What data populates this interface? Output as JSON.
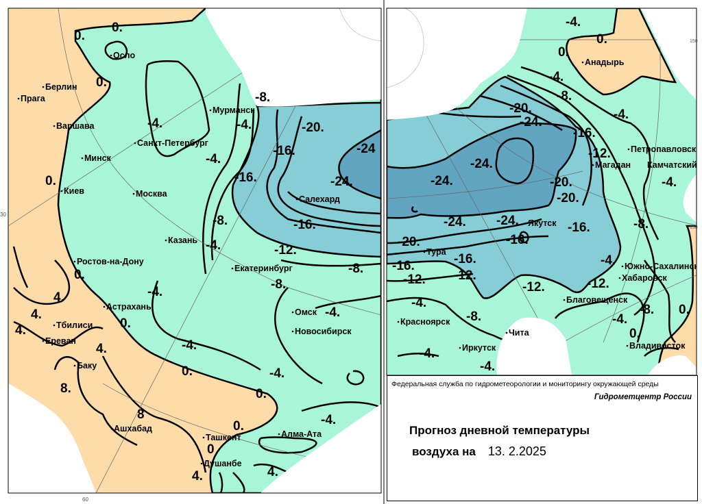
{
  "colors": {
    "above_zero": "#FDDCAA",
    "zero_to_minus12": "#A8F5D8",
    "minus12_to_minus24": "#86CDD6",
    "below_minus24": "#62A5C0",
    "no_data": "#FFFFFF",
    "isoline": "#000000"
  },
  "info": {
    "agency": "Федеральная служба по гидрометеорологии и мониторингу окружающей среды",
    "center": "Гидрометцентр России",
    "title_line1": "Прогноз дневной температуры",
    "title_line2": "воздуха на",
    "date": "13. 2.2025"
  },
  "grid_labels": [
    "30",
    "60",
    "150",
    "150"
  ],
  "left_map": {
    "cities": [
      "Осло",
      "Берлин",
      "Прага",
      "Варшава",
      "Минск",
      "Санкт-Петербург",
      "Мурманск",
      "Киев",
      "Москва",
      "Салехард",
      "Казань",
      "Ростов-на-Дону",
      "Екатеринбург",
      "Астрахань",
      "Омск",
      "Тбилиси",
      "Новосибирск",
      "Ереван",
      "Баку",
      "Ашхабад",
      "Ташкент",
      "Алма-Ата",
      "Душанбе"
    ],
    "isolines": [
      "0.",
      "0.",
      "0.",
      "0.",
      "0.",
      "0.",
      "0.",
      "0.",
      "0.",
      "0",
      "-4.",
      "-4.",
      "-4.",
      "-4.",
      "-4.",
      "-4.",
      "-4.",
      "-4.",
      "-4.",
      "-8.",
      "-8.",
      "-8.",
      "-8.",
      "-16.",
      "-16.",
      "-16.",
      "-20.",
      "-24",
      "-24.",
      "-12.",
      "4.",
      "4.",
      "4.",
      "4.",
      "4.",
      "4.",
      "8.",
      "8"
    ]
  },
  "right_map": {
    "cities": [
      "Анадырь",
      "Петропавловск",
      "Камчатский",
      "Магадан",
      "Якутск",
      "Тура",
      "Южно-Сахалинск",
      "Хабаровск",
      "Благовещенск",
      "Красноярск",
      "Чита",
      "Иркутск",
      "Владивосток"
    ],
    "isolines": [
      "-4.",
      "-4.",
      "-4.",
      "-4.",
      "-4.",
      "-4.",
      "-4.",
      "-4.",
      "-4.",
      "0.",
      "0.",
      "0.",
      "0.",
      "-8.",
      "-8.",
      "-8.",
      "-8.",
      "-20.",
      "-20.",
      "-20.",
      "-20.",
      "-24.",
      "-24.",
      "-24.",
      "-24.",
      "-24.",
      "-16.",
      "-16.",
      "-16.",
      "-16.",
      "-16.",
      "-12.",
      "-12.",
      "-12.",
      "-12.",
      "-12."
    ]
  }
}
